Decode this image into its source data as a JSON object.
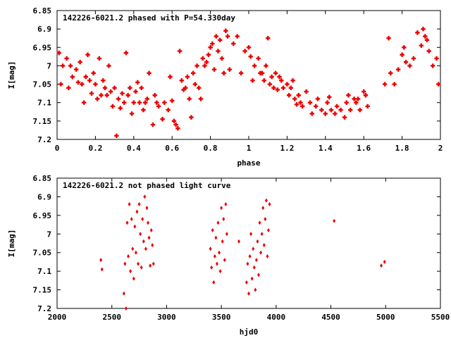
{
  "chart_data": [
    {
      "type": "scatter",
      "title": "142226-6021.2 phased with P=54.330day",
      "xlabel": "phase",
      "ylabel": "I[mag]",
      "xlim": [
        0,
        2
      ],
      "ylim": [
        6.85,
        7.2
      ],
      "y_inverted": true,
      "xticks": [
        0,
        0.2,
        0.4,
        0.6,
        0.8,
        1,
        1.2,
        1.4,
        1.6,
        1.8,
        2
      ],
      "xtick_labels": [
        "0",
        "0.2",
        "0.4",
        "0.6",
        "0.8",
        "1",
        "1.2",
        "1.4",
        "1.6",
        "1.8",
        "2"
      ],
      "yticks": [
        6.85,
        6.9,
        6.95,
        7,
        7.05,
        7.1,
        7.15,
        7.2
      ],
      "ytick_labels": [
        "6.85",
        "6.9",
        "6.95",
        "7",
        "7.05",
        "7.1",
        "7.15",
        "7.2"
      ],
      "grid": false,
      "legend": "none",
      "marker_color": "#ee0000",
      "marker_shape": "plus",
      "x": [
        0.01,
        0.02,
        0.03,
        0.05,
        0.06,
        0.07,
        0.08,
        0.1,
        0.11,
        0.12,
        0.13,
        0.14,
        0.15,
        0.16,
        0.17,
        0.18,
        0.19,
        0.2,
        0.21,
        0.22,
        0.23,
        0.24,
        0.25,
        0.26,
        0.27,
        0.28,
        0.29,
        0.3,
        0.31,
        0.32,
        0.33,
        0.34,
        0.35,
        0.36,
        0.37,
        0.38,
        0.39,
        0.4,
        0.41,
        0.42,
        0.43,
        0.44,
        0.45,
        0.46,
        0.47,
        0.48,
        0.5,
        0.51,
        0.52,
        0.53,
        0.55,
        0.56,
        0.58,
        0.59,
        0.6,
        0.61,
        0.62,
        0.63,
        0.64,
        0.65,
        0.66,
        0.67,
        0.68,
        0.69,
        0.7,
        0.71,
        0.72,
        0.73,
        0.74,
        0.75,
        0.76,
        0.77,
        0.78,
        0.79,
        0.8,
        0.81,
        0.82,
        0.83,
        0.84,
        0.85,
        0.86,
        0.87,
        0.88,
        0.89,
        0.9,
        0.92,
        0.94,
        0.96,
        0.98,
        1.0,
        1.01,
        1.02,
        1.03,
        1.05,
        1.06,
        1.07,
        1.08,
        1.09,
        1.1,
        1.11,
        1.12,
        1.13,
        1.14,
        1.15,
        1.16,
        1.17,
        1.18,
        1.2,
        1.21,
        1.22,
        1.23,
        1.24,
        1.25,
        1.26,
        1.27,
        1.28,
        1.3,
        1.32,
        1.33,
        1.35,
        1.36,
        1.38,
        1.4,
        1.41,
        1.42,
        1.43,
        1.45,
        1.46,
        1.48,
        1.5,
        1.51,
        1.52,
        1.53,
        1.55,
        1.56,
        1.57,
        1.58,
        1.6,
        1.61,
        1.62,
        1.71,
        1.73,
        1.74,
        1.76,
        1.78,
        1.8,
        1.81,
        1.82,
        1.84,
        1.86,
        1.88,
        1.9,
        1.91,
        1.92,
        1.93,
        1.94,
        1.96,
        1.98,
        1.99
      ],
      "y": [
        6.965,
        7.05,
        7.0,
        6.98,
        7.06,
        7.0,
        7.03,
        7.01,
        7.045,
        6.99,
        7.05,
        7.1,
        7.03,
        6.97,
        7.04,
        7.075,
        7.02,
        7.05,
        7.09,
        6.98,
        7.08,
        7.04,
        7.06,
        7.08,
        7.0,
        7.07,
        7.11,
        7.06,
        7.19,
        7.09,
        7.115,
        7.075,
        7.1,
        6.965,
        7.08,
        7.06,
        7.13,
        7.1,
        7.07,
        7.045,
        7.1,
        7.06,
        7.12,
        7.1,
        7.09,
        7.02,
        7.16,
        7.08,
        7.1,
        7.11,
        7.145,
        7.1,
        7.12,
        7.03,
        7.095,
        7.15,
        7.16,
        7.17,
        6.96,
        7.04,
        7.065,
        7.06,
        7.03,
        7.09,
        7.14,
        7.02,
        7.05,
        7.0,
        7.06,
        7.09,
        6.98,
        7.0,
        6.99,
        6.97,
        6.95,
        6.94,
        7.01,
        6.92,
        6.96,
        6.93,
        6.98,
        7.02,
        6.905,
        6.92,
        7.01,
        6.94,
        6.92,
        7.02,
        6.96,
        6.95,
        6.975,
        7.04,
        7.0,
        6.98,
        7.02,
        7.02,
        7.04,
        7.0,
        6.925,
        7.05,
        7.03,
        7.06,
        7.02,
        7.065,
        7.03,
        7.04,
        7.06,
        7.05,
        7.08,
        7.06,
        7.04,
        7.09,
        7.105,
        7.08,
        7.1,
        7.11,
        7.07,
        7.1,
        7.13,
        7.11,
        7.09,
        7.12,
        7.13,
        7.1,
        7.085,
        7.12,
        7.13,
        7.11,
        7.12,
        7.14,
        7.1,
        7.08,
        7.12,
        7.09,
        7.1,
        7.09,
        7.12,
        7.07,
        7.08,
        7.11,
        7.05,
        6.925,
        7.02,
        7.05,
        7.01,
        6.97,
        6.95,
        6.99,
        7.0,
        6.98,
        6.91,
        6.945,
        6.9,
        6.92,
        6.93,
        6.96,
        7.0,
        6.98,
        7.05
      ]
    },
    {
      "type": "scatter",
      "title": "142226-6021.2 not phased light curve",
      "xlabel": "hjd0",
      "ylabel": "I[mag]",
      "xlim": [
        2000,
        5500
      ],
      "ylim": [
        6.85,
        7.2
      ],
      "y_inverted": true,
      "xticks": [
        2000,
        2500,
        3000,
        3500,
        4000,
        4500,
        5000,
        5500
      ],
      "xtick_labels": [
        "2000",
        "2500",
        "3000",
        "3500",
        "4000",
        "4500",
        "5000",
        "5500"
      ],
      "yticks": [
        6.85,
        6.9,
        6.95,
        7,
        7.05,
        7.1,
        7.15,
        7.2
      ],
      "ytick_labels": [
        "6.85",
        "6.9",
        "6.95",
        "7",
        "7.05",
        "7.1",
        "7.15",
        "7.2"
      ],
      "grid": false,
      "legend": "none",
      "marker_color": "#ee0000",
      "marker_shape": "diamond",
      "x": [
        2400,
        2410,
        2610,
        2620,
        2630,
        2640,
        2650,
        2660,
        2670,
        2680,
        2690,
        2700,
        2710,
        2720,
        2730,
        2740,
        2750,
        2760,
        2770,
        2780,
        2790,
        2800,
        2810,
        2820,
        2830,
        2840,
        2850,
        2860,
        2870,
        2880,
        3400,
        3410,
        3420,
        3430,
        3440,
        3450,
        3460,
        3470,
        3480,
        3490,
        3500,
        3510,
        3520,
        3530,
        3540,
        3550,
        3660,
        3730,
        3740,
        3750,
        3760,
        3770,
        3780,
        3790,
        3800,
        3810,
        3820,
        3830,
        3840,
        3850,
        3860,
        3870,
        3880,
        3890,
        3900,
        3910,
        3920,
        3930,
        3940,
        4530,
        4960,
        4990
      ],
      "y": [
        7.07,
        7.095,
        7.16,
        7.08,
        7.2,
        6.97,
        7.06,
        6.92,
        7.1,
        6.96,
        7.04,
        7.12,
        6.98,
        7.05,
        6.94,
        7.08,
        6.92,
        7.0,
        7.09,
        6.96,
        7.02,
        6.9,
        7.04,
        6.93,
        6.97,
        7.01,
        7.085,
        6.99,
        7.03,
        7.08,
        7.04,
        7.09,
        6.99,
        7.13,
        7.06,
        7.01,
        7.08,
        6.97,
        7.05,
        7.1,
        6.93,
        7.02,
        6.96,
        7.07,
        6.92,
        7.0,
        7.02,
        7.13,
        7.08,
        7.16,
        7.06,
        7.0,
        7.12,
        7.04,
        7.09,
        7.15,
        7.07,
        7.02,
        7.11,
        6.97,
        7.05,
        7.0,
        6.93,
        7.03,
        6.96,
        6.91,
        7.06,
        6.99,
        6.92,
        6.965,
        7.085,
        7.075
      ]
    }
  ]
}
